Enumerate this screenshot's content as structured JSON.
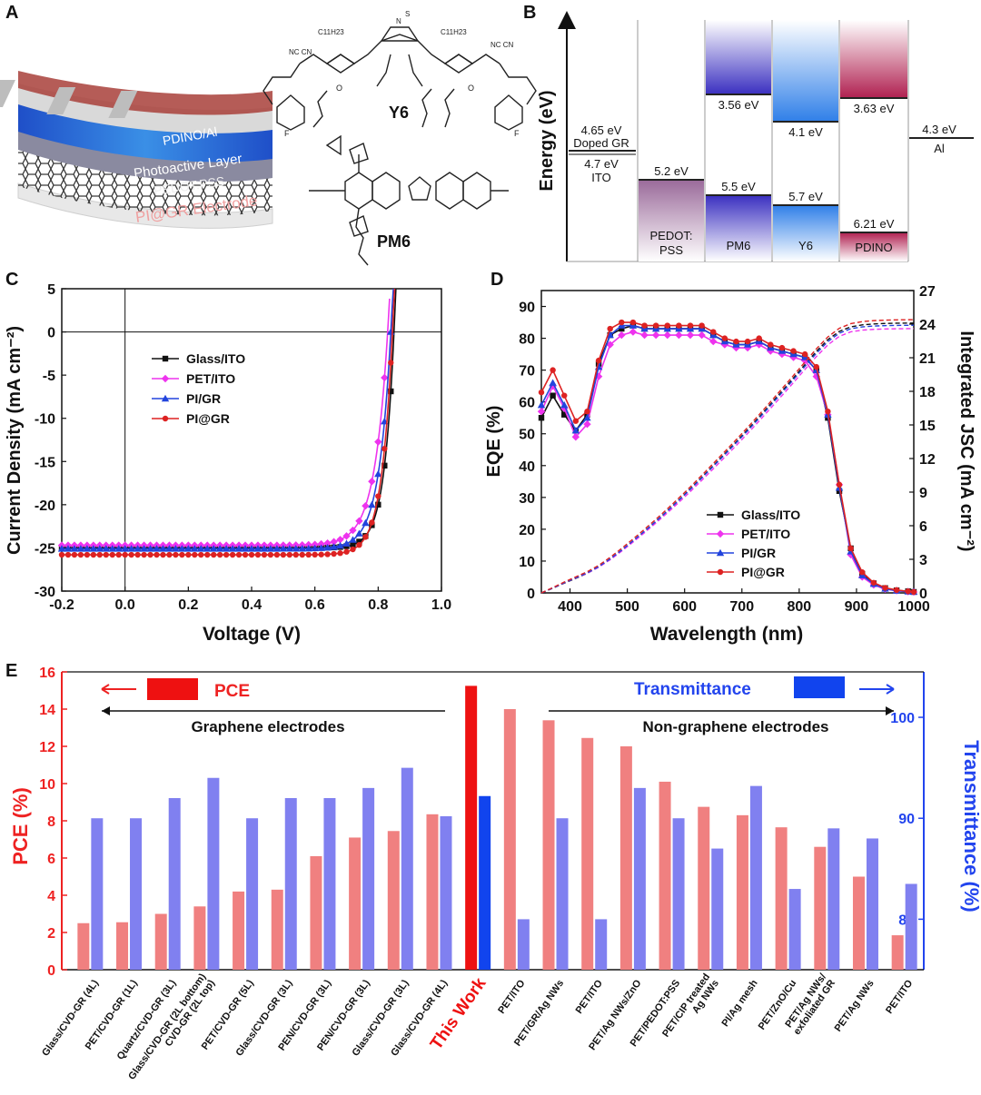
{
  "panels": {
    "a": "A",
    "b": "B",
    "c": "C",
    "d": "D",
    "e": "E"
  },
  "panel_a": {
    "layers": [
      "PDINO/Al",
      "Photoactive Layer",
      "PEDOT:PSS",
      "PI@GR Electrode"
    ],
    "molecules": [
      "Y6",
      "PM6"
    ],
    "chem_labels": {
      "c11h23": "C11H23",
      "nc_cn": "NC CN",
      "f": "F",
      "o": "O",
      "n": "N",
      "s": "S"
    }
  },
  "colors": {
    "glass_ito": "#111111",
    "pet_ito": "#ee33ee",
    "pi_gr": "#2244dd",
    "pi_at_gr": "#dd2222",
    "pce_bar": "#f08080",
    "trans_bar": "#8080f0",
    "this_work_pce": "#ee1111",
    "this_work_trans": "#1144ee"
  },
  "chart_data": [
    {
      "id": "B",
      "type": "energy-level-diagram",
      "ylabel": "Energy (eV)",
      "columns": [
        {
          "name": "Doped GR / ITO",
          "levels": [
            4.65,
            4.7
          ],
          "labels": [
            "4.65 eV",
            "Doped GR",
            "4.7 eV",
            "ITO"
          ]
        },
        {
          "name": "PEDOT:PSS",
          "lumo": null,
          "homo": 5.2,
          "labels": [
            "5.2 eV",
            "PEDOT:",
            "PSS"
          ]
        },
        {
          "name": "PM6",
          "lumo": 3.56,
          "homo": 5.5,
          "labels": [
            "3.56 eV",
            "5.5 eV",
            "PM6"
          ]
        },
        {
          "name": "Y6",
          "lumo": 4.1,
          "homo": 5.7,
          "labels": [
            "4.1 eV",
            "5.7 eV",
            "Y6"
          ]
        },
        {
          "name": "PDINO",
          "lumo": 3.63,
          "homo": 6.21,
          "labels": [
            "3.63 eV",
            "6.21 eV",
            "PDINO"
          ]
        },
        {
          "name": "Al",
          "levels": [
            4.3
          ],
          "labels": [
            "4.3 eV",
            "Al"
          ]
        }
      ]
    },
    {
      "id": "C",
      "type": "line",
      "xlabel": "Voltage (V)",
      "ylabel": "Current Density (mA cm⁻²)",
      "xlim": [
        -0.2,
        1.0
      ],
      "ylim": [
        -30,
        5
      ],
      "xticks": [
        "-0.2",
        "0.0",
        "0.2",
        "0.4",
        "0.6",
        "0.8",
        "1.0"
      ],
      "yticks": [
        "5",
        "0",
        "-5",
        "-10",
        "-15",
        "-20",
        "-25",
        "-30"
      ],
      "series": [
        {
          "name": "Glass/ITO",
          "marker": "square",
          "jsc": 25.0,
          "voc": 0.85,
          "n": 1.2
        },
        {
          "name": "PET/ITO",
          "marker": "diamond",
          "jsc": 24.7,
          "voc": 0.83,
          "n": 1.6
        },
        {
          "name": "PI/GR",
          "marker": "triangle",
          "jsc": 25.1,
          "voc": 0.84,
          "n": 1.45
        },
        {
          "name": "PI@GR",
          "marker": "circle",
          "jsc": 25.8,
          "voc": 0.845,
          "n": 1.3
        }
      ]
    },
    {
      "id": "D",
      "type": "line",
      "xlabel": "Wavelength (nm)",
      "ylabel": "EQE (%)",
      "y2label": "Integrated JSC (mA cm⁻²)",
      "xlim": [
        350,
        1000
      ],
      "ylim": [
        0,
        95
      ],
      "y2lim": [
        0,
        27
      ],
      "xticks": [
        "400",
        "500",
        "600",
        "700",
        "800",
        "900",
        "1000"
      ],
      "yticks": [
        "0",
        "10",
        "20",
        "30",
        "40",
        "50",
        "60",
        "70",
        "80",
        "90"
      ],
      "y2ticks": [
        "0",
        "3",
        "6",
        "9",
        "12",
        "15",
        "18",
        "21",
        "24",
        "27"
      ],
      "x": [
        350,
        370,
        390,
        410,
        430,
        450,
        470,
        490,
        510,
        530,
        550,
        570,
        590,
        610,
        630,
        650,
        670,
        690,
        710,
        730,
        750,
        770,
        790,
        810,
        830,
        850,
        870,
        890,
        910,
        930,
        950,
        970,
        990,
        1000
      ],
      "series": [
        {
          "name": "Glass/ITO",
          "marker": "square",
          "eqe": [
            55,
            62,
            56,
            51,
            56,
            72,
            81,
            83,
            84,
            83,
            83,
            83,
            83,
            83,
            83,
            81,
            79,
            78,
            78,
            79,
            77,
            76,
            75,
            74,
            70,
            55,
            32,
            14,
            6,
            3,
            1.5,
            0.8,
            0.5,
            0.3
          ],
          "jsc_final": 24.1
        },
        {
          "name": "PET/ITO",
          "marker": "diamond",
          "eqe": [
            57,
            65,
            58,
            49,
            53,
            68,
            78,
            81,
            82,
            81,
            81,
            81,
            81,
            81,
            81,
            79,
            78,
            77,
            77,
            78,
            76,
            75,
            74,
            73,
            68,
            56,
            34,
            12,
            5,
            2.5,
            1.2,
            0.7,
            0.4,
            0.3
          ],
          "jsc_final": 23.6
        },
        {
          "name": "PI/GR",
          "marker": "triangle",
          "eqe": [
            59,
            66,
            59,
            51,
            55,
            71,
            81,
            84,
            84,
            83,
            83,
            83,
            83,
            83,
            83,
            81,
            79,
            78,
            78,
            79,
            77,
            76,
            75,
            74,
            70,
            56,
            33,
            13,
            5.5,
            2.8,
            1.3,
            0.7,
            0.4,
            0.3
          ],
          "jsc_final": 23.9
        },
        {
          "name": "PI@GR",
          "marker": "circle",
          "eqe": [
            63,
            70,
            62,
            54,
            57,
            73,
            83,
            85,
            85,
            84,
            84,
            84,
            84,
            84,
            84,
            82,
            80,
            79,
            79,
            80,
            78,
            77,
            76,
            75,
            71,
            57,
            34,
            14,
            6.5,
            3.2,
            1.6,
            0.9,
            0.5,
            0.3
          ],
          "jsc_final": 24.4
        }
      ]
    },
    {
      "id": "E",
      "type": "bar",
      "ylabel": "PCE (%)",
      "y2label": "Transmittance (%)",
      "ylim": [
        0,
        16
      ],
      "y2lim": [
        75,
        104.5
      ],
      "yticks": [
        "0",
        "2",
        "4",
        "6",
        "8",
        "10",
        "12",
        "14",
        "16"
      ],
      "y2ticks": [
        "80",
        "90",
        "100"
      ],
      "legend_pce": "PCE",
      "legend_trans": "Transmittance",
      "annot_left": "Graphene electrodes",
      "annot_right": "Non-graphene electrodes",
      "categories": [
        "Glass/CVD-GR (4L)",
        "PET/CVD-GR (1L)",
        "Quartz/CVD-GR (3L)",
        "Glass/CVD-GR (2L bottom)",
        "PET/CVD-GR (5L)",
        "Glass/CVD-GR (3L)",
        "PEN/CVD-GR (3L)",
        "PEN/CVD-GR (3L)",
        "Glass/CVD-GR (3L)",
        "Glass/CVD-GR (4L)",
        "This Work",
        "PET/ITO",
        "PET/GR/Ag NWs",
        "PET/ITO",
        "PET/Ag NWs/ZnO",
        "PET/PEDOT:PSS",
        "PET/CIP treated Ag NWs",
        "PI/Ag mesh",
        "PET/ZnO/Cu",
        "PET/Ag NWs/ exfoliated GR",
        "PET/Ag NWs",
        "PET/ITO"
      ],
      "label_lines": {
        "3": [
          "Glass/CVD-GR (2L bottom)",
          "CVD-GR (2L top)"
        ],
        "16": [
          "PET/CIP treated",
          "Ag NWs"
        ],
        "19": [
          "PET/Ag NWs/",
          "exfoliated GR"
        ]
      },
      "highlight_index": 10,
      "pce": [
        2.5,
        2.55,
        3.0,
        3.4,
        4.2,
        4.3,
        6.1,
        7.1,
        7.45,
        8.35,
        15.25,
        14.0,
        13.4,
        12.45,
        12.0,
        10.1,
        8.75,
        8.3,
        7.65,
        6.6,
        5.0,
        1.85
      ],
      "transmittance": [
        90,
        90,
        92,
        94,
        90,
        92,
        92,
        93,
        95,
        90.2,
        92.2,
        80,
        90,
        80,
        93,
        90,
        87,
        93.2,
        83,
        89,
        88,
        83.5
      ]
    }
  ]
}
